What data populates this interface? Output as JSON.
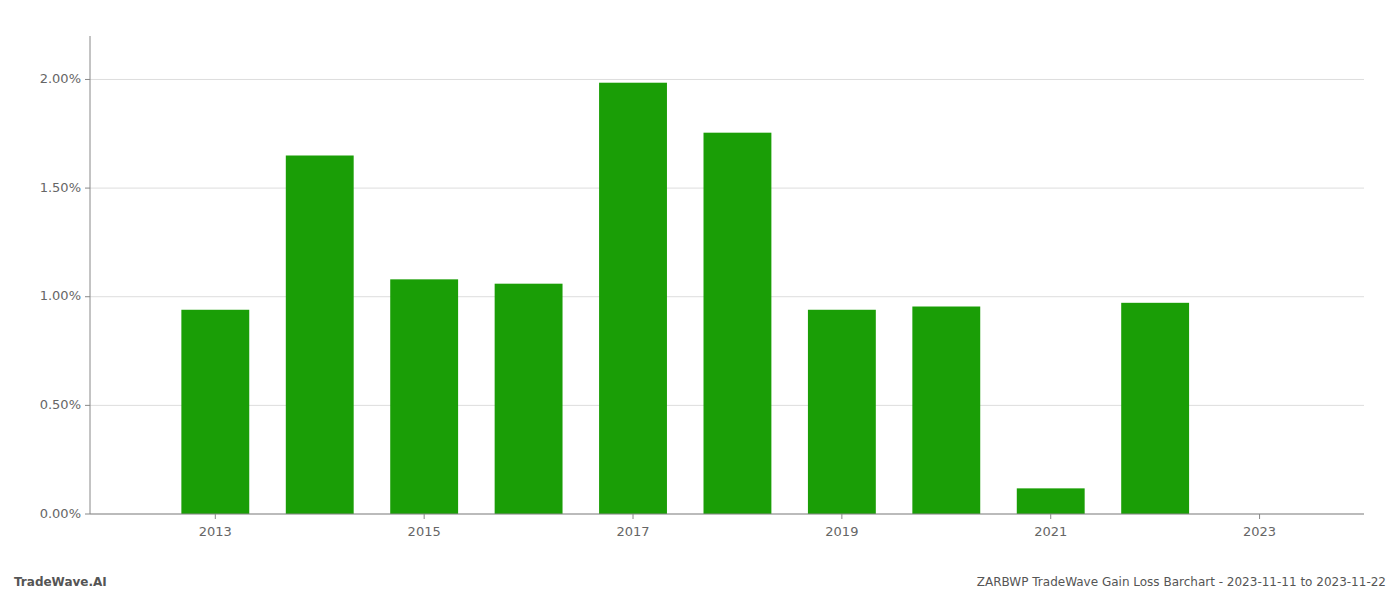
{
  "chart_data": {
    "type": "bar",
    "x": [
      2013,
      2014,
      2015,
      2016,
      2017,
      2018,
      2019,
      2020,
      2021,
      2022,
      2023
    ],
    "values": [
      0.0094,
      0.0165,
      0.0108,
      0.0106,
      0.01985,
      0.01755,
      0.0094,
      0.00955,
      0.00118,
      0.00972,
      0.0
    ],
    "color": "#1a9e06",
    "xlim": [
      2011.8,
      2024.0
    ],
    "xticks": [
      2013,
      2015,
      2017,
      2019,
      2021,
      2023
    ],
    "ylim": [
      0,
      0.022
    ],
    "yticks": [
      {
        "value": 0.0,
        "label": "0.00%"
      },
      {
        "value": 0.005,
        "label": "0.50%"
      },
      {
        "value": 0.01,
        "label": "1.00%"
      },
      {
        "value": 0.015,
        "label": "1.50%"
      },
      {
        "value": 0.02,
        "label": "2.00%"
      }
    ],
    "grid": true,
    "annotations": [
      "TradeWave.AI",
      "ZARBWP TradeWave Gain Loss Barchart - 2023-11-11 to 2023-11-22"
    ]
  }
}
